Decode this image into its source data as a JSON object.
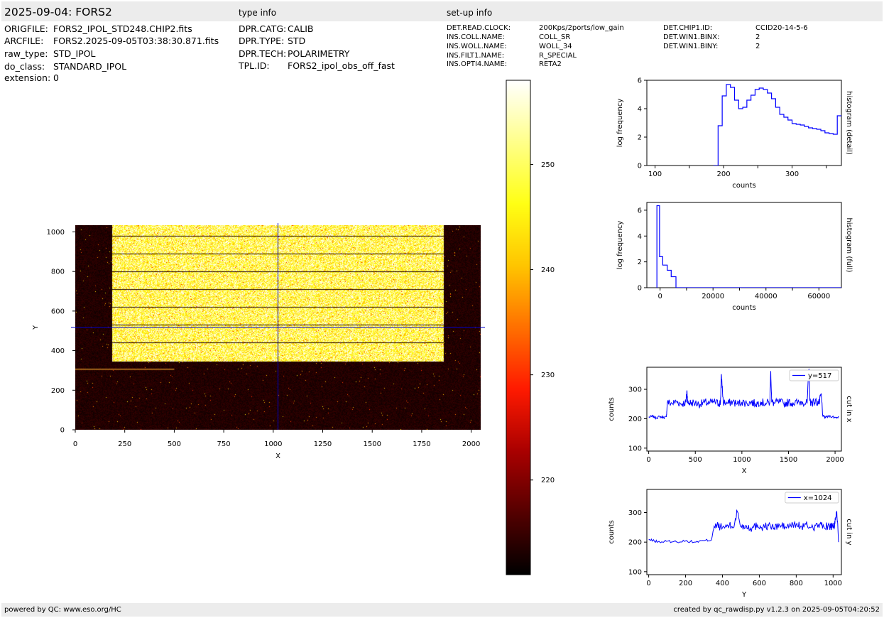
{
  "header": {
    "title": "2025-09-04: FORS2",
    "type_info_label": "type info",
    "setup_info_label": "set-up info"
  },
  "file_info": [
    {
      "key": "ORIGFILE:",
      "value": "FORS2_IPOL_STD248.CHIP2.fits"
    },
    {
      "key": "ARCFILE:",
      "value": "FORS2.2025-09-05T03:38:30.871.fits"
    },
    {
      "key": "raw_type:",
      "value": "STD_IPOL"
    },
    {
      "key": "do_class:",
      "value": "STANDARD_IPOL"
    },
    {
      "key": "extension:",
      "value": "0"
    }
  ],
  "type_info": [
    {
      "key": "DPR.CATG:",
      "value": "CALIB"
    },
    {
      "key": "DPR.TYPE:",
      "value": "STD"
    },
    {
      "key": "DPR.TECH:",
      "value": "POLARIMETRY"
    },
    {
      "key": "TPL.ID:",
      "value": "FORS2_ipol_obs_off_fast"
    }
  ],
  "setup_info_left": [
    {
      "key": "DET.READ.CLOCK:",
      "value": "200Kps/2ports/low_gain"
    },
    {
      "key": "INS.COLL.NAME:",
      "value": "COLL_SR"
    },
    {
      "key": "INS.WOLL.NAME:",
      "value": "WOLL_34"
    },
    {
      "key": "INS.FILT1.NAME:",
      "value": "R_SPECIAL"
    },
    {
      "key": "INS.OPTI4.NAME:",
      "value": "RETA2"
    }
  ],
  "setup_info_right": [
    {
      "key": "DET.CHIP1.ID:",
      "value": "CCID20-14-5-6"
    },
    {
      "key": "DET.WIN1.BINX:",
      "value": "2"
    },
    {
      "key": "DET.WIN1.BINY:",
      "value": "2"
    }
  ],
  "footer": {
    "left": "powered by QC: www.eso.org/HC",
    "right": "created by qc_rawdisp.py v1.2.3 on 2025-09-05T04:20:52"
  },
  "colors": {
    "band": "#ececec",
    "line": "#0000ff",
    "crosshair": "#0000cc",
    "colormap": [
      "#000000",
      "#550000",
      "#aa0000",
      "#ff1a00",
      "#ff7000",
      "#ffc500",
      "#ffff14",
      "#ffff8a",
      "#ffffff"
    ]
  },
  "chart_data": [
    {
      "id": "image",
      "type": "heatmap",
      "xlabel": "X",
      "ylabel": "Y",
      "xlim": [
        0,
        2048
      ],
      "ylim": [
        0,
        1034
      ],
      "xticks": [
        0,
        250,
        500,
        750,
        1000,
        1250,
        1500,
        1750,
        2000
      ],
      "yticks": [
        0,
        200,
        400,
        600,
        800,
        1000
      ],
      "crosshair": {
        "x": 1024,
        "y": 517
      },
      "colormap": "hot",
      "illuminated_region": {
        "x": [
          185,
          1860
        ],
        "y": [
          345,
          1034
        ]
      },
      "dark_lines_y": [
        440,
        530,
        620,
        710,
        800,
        890,
        980
      ]
    },
    {
      "id": "colorbar",
      "type": "heatmap",
      "vmin": 211,
      "vmax": 258,
      "ticks": [
        220,
        230,
        240,
        250
      ]
    },
    {
      "id": "hist_detail",
      "type": "line",
      "xlabel": "counts",
      "ylabel": "log frequency",
      "side_label": "histogram (detail)",
      "xlim": [
        88,
        372
      ],
      "ylim": [
        0,
        6
      ],
      "xticks": [
        100,
        200,
        300
      ],
      "yticks": [
        0,
        2,
        4,
        6
      ],
      "step_x": [
        185,
        192,
        198,
        204,
        210,
        216,
        222,
        228,
        234,
        240,
        246,
        252,
        258,
        264,
        270,
        276,
        282,
        288,
        294,
        300,
        306,
        312,
        318,
        324,
        330,
        336,
        342,
        348,
        354,
        360,
        366,
        372
      ],
      "step_y": [
        0,
        2.8,
        4.9,
        5.7,
        5.5,
        4.6,
        4.0,
        4.1,
        4.6,
        4.95,
        5.35,
        5.45,
        5.35,
        5.1,
        4.7,
        4.1,
        3.6,
        3.4,
        3.2,
        2.95,
        2.9,
        2.85,
        2.75,
        2.65,
        2.6,
        2.55,
        2.45,
        2.3,
        2.25,
        2.2,
        3.5
      ]
    },
    {
      "id": "hist_full",
      "type": "line",
      "xlabel": "counts",
      "ylabel": "log frequency",
      "side_label": "histogram (full)",
      "xlim": [
        -5000,
        68500
      ],
      "ylim": [
        0,
        6.6
      ],
      "xticks": [
        0,
        20000,
        40000,
        60000
      ],
      "yticks": [
        0,
        2,
        4,
        6
      ],
      "step_x": [
        -1200,
        -200,
        1000,
        2700,
        4200,
        6000,
        68500
      ],
      "step_y": [
        6.35,
        2.4,
        1.75,
        1.35,
        0.85,
        0
      ]
    },
    {
      "id": "cut_x",
      "type": "line",
      "xlabel": "X",
      "ylabel": "counts",
      "side_label": "cut in x",
      "legend": "y=517",
      "legend_position": "upper right",
      "xlim": [
        -20,
        2068
      ],
      "ylim": [
        90,
        375
      ],
      "xticks": [
        0,
        500,
        1000,
        1500,
        2000
      ],
      "yticks": [
        100,
        200,
        300
      ],
      "x": [
        0,
        40,
        80,
        120,
        160,
        190,
        200,
        250,
        300,
        350,
        400,
        410,
        420,
        450,
        500,
        550,
        600,
        650,
        700,
        750,
        770,
        780,
        800,
        850,
        900,
        950,
        1000,
        1050,
        1100,
        1150,
        1200,
        1250,
        1300,
        1310,
        1320,
        1350,
        1400,
        1450,
        1500,
        1550,
        1600,
        1650,
        1700,
        1720,
        1730,
        1740,
        1760,
        1800,
        1830,
        1850,
        1870,
        1900,
        1950,
        2000,
        2040
      ],
      "y": [
        205,
        208,
        203,
        207,
        204,
        206,
        255,
        252,
        258,
        250,
        256,
        295,
        252,
        255,
        253,
        249,
        256,
        252,
        258,
        251,
        255,
        350,
        256,
        252,
        258,
        250,
        257,
        253,
        256,
        250,
        258,
        252,
        255,
        362,
        256,
        252,
        258,
        251,
        256,
        253,
        255,
        258,
        252,
        370,
        260,
        256,
        255,
        258,
        252,
        285,
        207,
        205,
        209,
        204,
        206
      ]
    },
    {
      "id": "cut_y",
      "type": "line",
      "xlabel": "Y",
      "ylabel": "counts",
      "side_label": "cut in y",
      "legend": "x=1024",
      "legend_position": "upper right",
      "xlim": [
        -10,
        1045
      ],
      "ylim": [
        90,
        378
      ],
      "xticks": [
        0,
        200,
        400,
        600,
        800,
        1000
      ],
      "yticks": [
        100,
        200,
        300
      ],
      "x": [
        0,
        30,
        60,
        100,
        150,
        200,
        250,
        300,
        340,
        350,
        370,
        400,
        430,
        460,
        480,
        500,
        530,
        560,
        590,
        620,
        650,
        680,
        710,
        740,
        770,
        800,
        830,
        860,
        890,
        920,
        950,
        980,
        1000,
        1010,
        1020,
        1030
      ],
      "y": [
        208,
        204,
        200,
        203,
        201,
        204,
        200,
        205,
        207,
        240,
        258,
        248,
        256,
        250,
        305,
        252,
        255,
        247,
        258,
        250,
        256,
        248,
        257,
        251,
        255,
        260,
        252,
        256,
        250,
        258,
        252,
        255,
        248,
        262,
        305,
        200
      ]
    }
  ]
}
